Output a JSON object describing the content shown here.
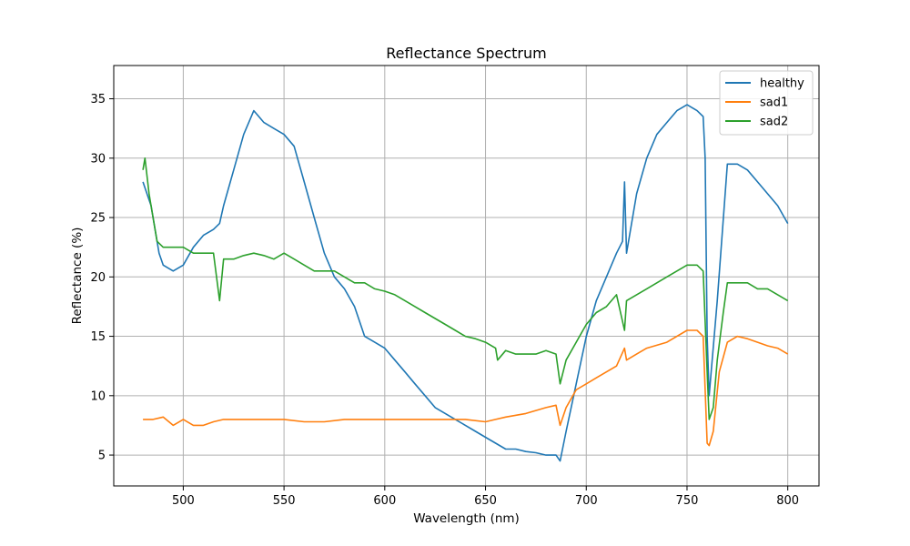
{
  "chart_data": {
    "type": "line",
    "title": "Reflectance Spectrum",
    "xlabel": "Wavelength (nm)",
    "ylabel": "Reflectance (%)",
    "xlim": [
      465.5,
      815.5
    ],
    "ylim": [
      2.4,
      37.8
    ],
    "xticks": [
      500,
      550,
      600,
      650,
      700,
      750,
      800
    ],
    "yticks": [
      5,
      10,
      15,
      20,
      25,
      30,
      35
    ],
    "grid": true,
    "legend_position": "top-right",
    "series": [
      {
        "name": "healthy",
        "color": "#1f77b4",
        "x": [
          480,
          482,
          484,
          486,
          488,
          490,
          495,
          500,
          505,
          510,
          515,
          518,
          520,
          525,
          530,
          535,
          540,
          545,
          550,
          555,
          560,
          565,
          570,
          575,
          580,
          585,
          590,
          595,
          600,
          605,
          610,
          615,
          620,
          625,
          630,
          635,
          640,
          645,
          650,
          655,
          660,
          665,
          670,
          675,
          680,
          685,
          687,
          690,
          695,
          700,
          705,
          710,
          715,
          718,
          719,
          720,
          725,
          730,
          735,
          740,
          745,
          750,
          755,
          758,
          759,
          760,
          761,
          762,
          765,
          770,
          775,
          780,
          785,
          790,
          795,
          800
        ],
        "y": [
          28,
          27,
          26,
          24,
          22,
          21,
          20.5,
          21,
          22.5,
          23.5,
          24,
          24.5,
          26,
          29,
          32,
          34,
          33,
          32.5,
          32,
          31,
          28,
          25,
          22,
          20,
          19,
          17.5,
          15,
          14.5,
          14,
          13,
          12,
          11,
          10,
          9,
          8.5,
          8,
          7.5,
          7,
          6.5,
          6,
          5.5,
          5.5,
          5.3,
          5.2,
          5,
          5,
          4.5,
          7,
          11,
          15,
          18,
          20,
          22,
          23,
          28,
          22,
          27,
          30,
          32,
          33,
          34,
          34.5,
          34,
          33.5,
          30,
          15,
          10,
          12,
          18,
          29.5,
          29.5,
          29,
          28,
          27,
          26,
          24.5
        ]
      },
      {
        "name": "sad1",
        "color": "#ff7f0e",
        "x": [
          480,
          485,
          490,
          495,
          500,
          505,
          510,
          515,
          520,
          530,
          540,
          550,
          560,
          570,
          580,
          590,
          600,
          610,
          620,
          630,
          640,
          650,
          655,
          660,
          670,
          680,
          685,
          687,
          690,
          695,
          700,
          705,
          710,
          715,
          719,
          720,
          725,
          730,
          740,
          750,
          755,
          758,
          760,
          761,
          763,
          766,
          770,
          775,
          780,
          785,
          790,
          795,
          800
        ],
        "y": [
          8,
          8,
          8.2,
          7.5,
          8,
          7.5,
          7.5,
          7.8,
          8,
          8,
          8,
          8,
          7.8,
          7.8,
          8,
          8,
          8,
          8,
          8,
          8,
          8,
          7.8,
          8,
          8.2,
          8.5,
          9,
          9.2,
          7.5,
          9,
          10.5,
          11,
          11.5,
          12,
          12.5,
          14,
          13,
          13.5,
          14,
          14.5,
          15.5,
          15.5,
          15,
          6,
          5.8,
          7,
          12,
          14.5,
          15,
          14.8,
          14.5,
          14.2,
          14,
          13.5
        ]
      },
      {
        "name": "sad2",
        "color": "#2ca02c",
        "x": [
          480,
          481,
          483,
          485,
          487,
          490,
          495,
          500,
          505,
          510,
          515,
          518,
          520,
          525,
          530,
          535,
          540,
          545,
          550,
          555,
          560,
          565,
          570,
          575,
          580,
          585,
          590,
          595,
          600,
          605,
          610,
          615,
          620,
          625,
          630,
          635,
          640,
          645,
          650,
          655,
          656,
          660,
          665,
          670,
          675,
          680,
          685,
          687,
          690,
          695,
          700,
          705,
          710,
          715,
          719,
          720,
          725,
          730,
          740,
          750,
          755,
          758,
          760,
          761,
          763,
          765,
          768,
          770,
          775,
          780,
          785,
          790,
          795,
          800
        ],
        "y": [
          29,
          30,
          27,
          25,
          23,
          22.5,
          22.5,
          22.5,
          22,
          22,
          22,
          18,
          21.5,
          21.5,
          21.8,
          22,
          21.8,
          21.5,
          22,
          21.5,
          21,
          20.5,
          20.5,
          20.5,
          20,
          19.5,
          19.5,
          19,
          18.8,
          18.5,
          18,
          17.5,
          17,
          16.5,
          16,
          15.5,
          15,
          14.8,
          14.5,
          14,
          13,
          13.8,
          13.5,
          13.5,
          13.5,
          13.8,
          13.5,
          11,
          13,
          14.5,
          16,
          17,
          17.5,
          18.5,
          15.5,
          18,
          18.5,
          19,
          20,
          21,
          21,
          20.5,
          12,
          8,
          9,
          13,
          17,
          19.5,
          19.5,
          19.5,
          19,
          19,
          18.5,
          18
        ]
      }
    ]
  }
}
